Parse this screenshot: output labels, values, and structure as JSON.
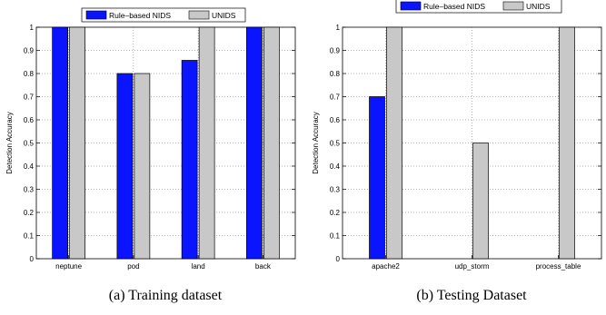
{
  "colors": {
    "rule_based": "#0a14ff",
    "unids": "#c8c8c8"
  },
  "chart_data": [
    {
      "type": "bar",
      "caption": "(a) Training dataset",
      "ylabel": "Detection Accuracy",
      "ylim": [
        0,
        1
      ],
      "yticks": [
        "0",
        "0.1",
        "0.2",
        "0.3",
        "0.4",
        "0.5",
        "0.6",
        "0.7",
        "0.8",
        "0.9",
        "1"
      ],
      "grid": true,
      "legend": "top",
      "categories": [
        "neptune",
        "pod",
        "land",
        "back"
      ],
      "series": [
        {
          "name": "Rule–based NIDS",
          "values": [
            1.0,
            0.8,
            0.857,
            1.0
          ]
        },
        {
          "name": "UNIDS",
          "values": [
            1.0,
            0.8,
            1.0,
            1.0
          ]
        }
      ]
    },
    {
      "type": "bar",
      "caption": "(b) Testing Dataset",
      "ylabel": "Detection Accuracy",
      "ylim": [
        0,
        1
      ],
      "yticks": [
        "0",
        "0.1",
        "0.2",
        "0.3",
        "0.4",
        "0.5",
        "0.6",
        "0.7",
        "0.8",
        "0.9",
        "1"
      ],
      "grid": true,
      "legend": "top",
      "categories": [
        "apache2",
        "udp_storm",
        "process_table"
      ],
      "series": [
        {
          "name": "Rule–based NIDS",
          "values": [
            0.7,
            0.0,
            0.0
          ]
        },
        {
          "name": "UNIDS",
          "values": [
            1.0,
            0.5,
            1.0
          ]
        }
      ]
    }
  ]
}
